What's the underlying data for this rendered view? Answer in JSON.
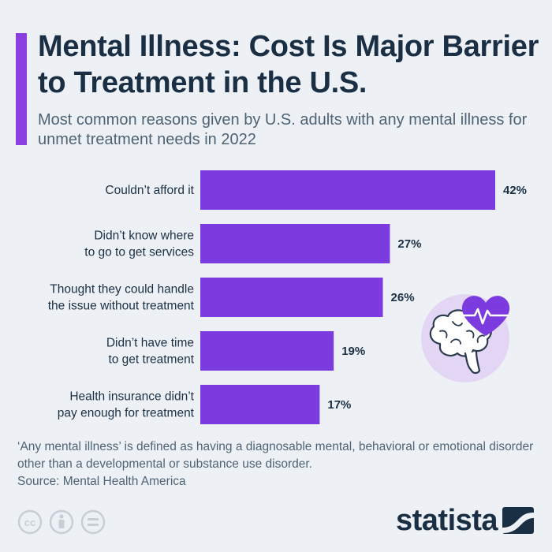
{
  "header": {
    "title": "Mental Illness: Cost Is Major Barrier to Treatment in the U.S.",
    "subtitle": "Most common reasons given by U.S. adults with any mental illness for unmet treatment needs in 2022"
  },
  "chart_data": {
    "type": "bar",
    "orientation": "horizontal",
    "title": "Mental Illness: Cost Is Major Barrier to Treatment in the U.S.",
    "subtitle": "Most common reasons given by U.S. adults with any mental illness for unmet treatment needs in 2022",
    "categories": [
      [
        "Couldn’t afford it"
      ],
      [
        "Didn’t know where",
        "to go to get services"
      ],
      [
        "Thought they could handle",
        "the issue without treatment"
      ],
      [
        "Didn’t have time",
        "to get treatment"
      ],
      [
        "Health insurance didn’t",
        "pay enough for treatment"
      ]
    ],
    "values": [
      42,
      27,
      26,
      19,
      17
    ],
    "value_labels": [
      "42%",
      "27%",
      "26%",
      "19%",
      "17%"
    ],
    "unit": "%",
    "xlim": [
      0,
      42
    ],
    "xlabel": "",
    "ylabel": "",
    "grid": false,
    "bar_color": "#7c3bde"
  },
  "footer": {
    "note": "‘Any mental illness’ is defined as having a diagnosable mental, behavioral or emotional disorder other than a developmental or substance use disorder.",
    "source": "Source: Mental Health America",
    "brand": "statista"
  },
  "icons": {
    "illustration": "brain-heart-illustration",
    "license": [
      "cc-icon",
      "attribution-icon",
      "no-derivatives-icon"
    ],
    "logo": "statista-logo-icon"
  },
  "colors": {
    "accent": "#8b3fe0",
    "bar": "#7c3bde",
    "text": "#1b2f44",
    "muted": "#4e6274",
    "background": "#edf1f5"
  }
}
